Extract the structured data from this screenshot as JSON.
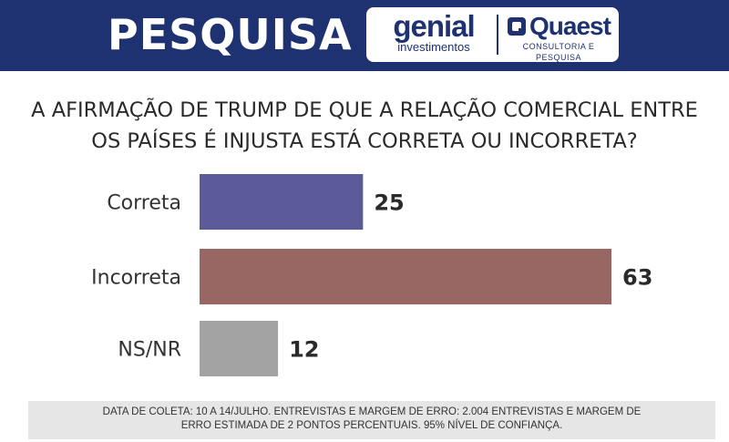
{
  "header": {
    "title": "PESQUISA",
    "logo_genial_name": "genial",
    "logo_genial_sub": "investimentos",
    "logo_quaest_name": "Quaest",
    "logo_quaest_sub": "CONSULTORIA E PESQUISA"
  },
  "question": "A AFIRMAÇÃO DE TRUMP DE QUE A RELAÇÃO COMERCIAL ENTRE\nOS PAÍSES É INJUSTA  ESTÁ CORRETA OU INCORRETA?",
  "chart_data": {
    "type": "bar",
    "orientation": "horizontal",
    "categories": [
      "Correta",
      "Incorreta",
      "NS/NR"
    ],
    "values": [
      25,
      63,
      12
    ],
    "colors": [
      "#5b5b9a",
      "#996763",
      "#a3a3a3"
    ],
    "xlim": [
      0,
      63
    ],
    "grid": false,
    "legend": "none"
  },
  "footer": {
    "text": "DATA DE COLETA: 10 A 14/JULHO. ENTREVISTAS E MARGEM DE ERRO: 2.004 ENTREVISTAS E MARGEM DE\nERRO ESTIMADA DE 2 PONTOS PERCENTUAIS. 95% NÍVEL DE CONFIANÇA."
  },
  "colors": {
    "header_bg": "#1e3170",
    "footer_bg": "#e6e6e6"
  }
}
